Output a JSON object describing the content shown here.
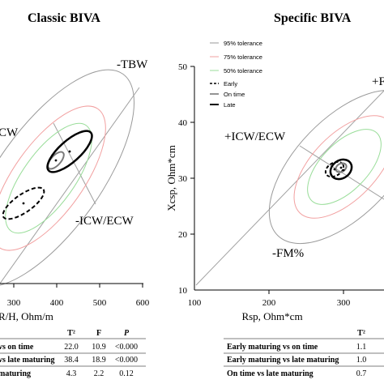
{
  "colors": {
    "t95": "#9a9a9a",
    "t75": "#f2a0a0",
    "t50": "#99dd99",
    "group": "#000000",
    "axis": "#000000"
  },
  "chart_data": [
    {
      "type": "scatter",
      "title": "Classic BIVA",
      "xlabel": "R/H, Ohm/m",
      "ylabel": "",
      "x_ticks": [
        "300",
        "400",
        "500",
        "600"
      ],
      "xlim": [
        280,
        600
      ],
      "regions": [
        "-TBW",
        "CW",
        "-ICW/ECW"
      ],
      "tolerance_ellipses": [
        "95% tolerance",
        "75% tolerance",
        "50% tolerance"
      ],
      "series": [
        {
          "name": "Early",
          "center_x": 322,
          "center_y": 31
        },
        {
          "name": "On time",
          "center_x": 400,
          "center_y": 42
        },
        {
          "name": "Late",
          "center_x": 425,
          "center_y": 44
        }
      ],
      "table": {
        "headers": [
          "",
          "T²",
          "F",
          "P"
        ],
        "rows": [
          [
            "vs on time",
            "22.0",
            "10.9",
            "<0.000"
          ],
          [
            "vs late maturing",
            "38.4",
            "18.9",
            "<0.000"
          ],
          [
            "maturing",
            "4.3",
            "2.2",
            "0.12"
          ]
        ]
      }
    },
    {
      "type": "scatter",
      "title": "Specific BIVA",
      "xlabel": "Rsp, Ohm*cm",
      "ylabel": "Xcsp, Ohm*cm",
      "x_ticks": [
        "100",
        "200",
        "300"
      ],
      "y_ticks": [
        "10",
        "20",
        "30",
        "40",
        "50"
      ],
      "xlim": [
        100,
        340
      ],
      "ylim": [
        10,
        50
      ],
      "regions": [
        "+ICW/ECW",
        "-FM%",
        "+F"
      ],
      "tolerance_ellipses": [
        "95% tolerance",
        "75% tolerance",
        "50% tolerance"
      ],
      "series": [
        {
          "name": "Early",
          "center_x": 295,
          "center_y": 31.5
        },
        {
          "name": "On time",
          "center_x": 300,
          "center_y": 32
        },
        {
          "name": "Late",
          "center_x": 302,
          "center_y": 32.5
        }
      ],
      "table": {
        "headers": [
          "",
          "T²"
        ],
        "rows": [
          [
            "Early maturing vs on time",
            "1.1"
          ],
          [
            "Early maturing vs late maturing",
            "1.0"
          ],
          [
            "On time vs late maturing",
            "0.7"
          ]
        ]
      }
    }
  ],
  "legend": {
    "items": [
      {
        "label": "95% tolerance",
        "style": "t95"
      },
      {
        "label": "75% tolerance",
        "style": "t75"
      },
      {
        "label": "50% tolerance",
        "style": "t50"
      },
      {
        "label": "Early",
        "style": "early"
      },
      {
        "label": "On time",
        "style": "ontime"
      },
      {
        "label": "Late",
        "style": "late"
      }
    ]
  }
}
